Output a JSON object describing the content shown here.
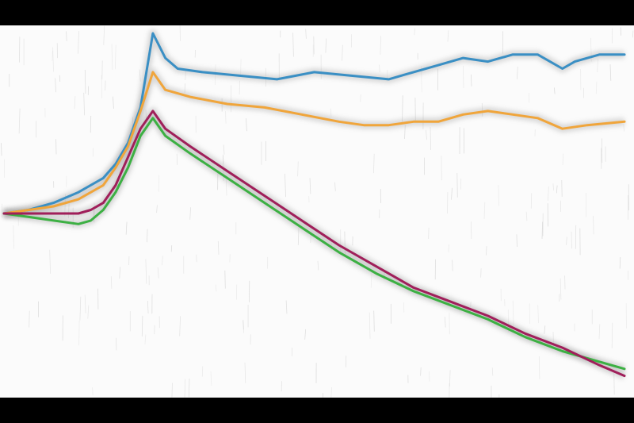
{
  "chart_data": {
    "type": "line",
    "title": "",
    "xlabel": "",
    "ylabel": "",
    "grid": false,
    "legend": "none",
    "xlim": [
      0,
      100
    ],
    "ylim": [
      0,
      100
    ],
    "series": [
      {
        "color": "#3a8fc4",
        "points": [
          [
            0,
            49
          ],
          [
            4,
            50
          ],
          [
            8,
            52
          ],
          [
            12,
            55
          ],
          [
            16,
            59
          ],
          [
            18,
            63
          ],
          [
            20,
            69
          ],
          [
            22,
            79
          ],
          [
            24,
            100
          ],
          [
            26,
            93
          ],
          [
            28,
            90
          ],
          [
            32,
            89
          ],
          [
            38,
            88
          ],
          [
            44,
            87
          ],
          [
            50,
            89
          ],
          [
            56,
            88
          ],
          [
            62,
            87
          ],
          [
            66,
            89
          ],
          [
            70,
            91
          ],
          [
            74,
            93
          ],
          [
            78,
            92
          ],
          [
            82,
            94
          ],
          [
            86,
            94
          ],
          [
            90,
            90
          ],
          [
            92,
            92
          ],
          [
            96,
            94
          ],
          [
            100,
            94
          ]
        ]
      },
      {
        "color": "#f0a53b",
        "points": [
          [
            0,
            49
          ],
          [
            4,
            50
          ],
          [
            8,
            51
          ],
          [
            12,
            53
          ],
          [
            16,
            57
          ],
          [
            18,
            62
          ],
          [
            20,
            68
          ],
          [
            22,
            78
          ],
          [
            24,
            89
          ],
          [
            26,
            84
          ],
          [
            30,
            82
          ],
          [
            36,
            80
          ],
          [
            42,
            79
          ],
          [
            48,
            77
          ],
          [
            54,
            75
          ],
          [
            58,
            74
          ],
          [
            62,
            74
          ],
          [
            66,
            75
          ],
          [
            70,
            75
          ],
          [
            74,
            77
          ],
          [
            78,
            78
          ],
          [
            82,
            77
          ],
          [
            86,
            76
          ],
          [
            90,
            73
          ],
          [
            94,
            74
          ],
          [
            100,
            75
          ]
        ]
      },
      {
        "color": "#3cb043",
        "points": [
          [
            0,
            49
          ],
          [
            4,
            48
          ],
          [
            8,
            47
          ],
          [
            12,
            46
          ],
          [
            14,
            47
          ],
          [
            16,
            50
          ],
          [
            18,
            55
          ],
          [
            20,
            62
          ],
          [
            22,
            71
          ],
          [
            24,
            76
          ],
          [
            26,
            71
          ],
          [
            30,
            66
          ],
          [
            36,
            59
          ],
          [
            42,
            52
          ],
          [
            48,
            45
          ],
          [
            54,
            38
          ],
          [
            60,
            32
          ],
          [
            66,
            27
          ],
          [
            72,
            23
          ],
          [
            78,
            19
          ],
          [
            84,
            14
          ],
          [
            90,
            10
          ],
          [
            96,
            7
          ],
          [
            100,
            5
          ]
        ]
      },
      {
        "color": "#a01f5a",
        "points": [
          [
            0,
            49
          ],
          [
            4,
            49
          ],
          [
            8,
            49
          ],
          [
            12,
            49
          ],
          [
            14,
            50
          ],
          [
            16,
            52
          ],
          [
            18,
            57
          ],
          [
            20,
            65
          ],
          [
            22,
            73
          ],
          [
            24,
            78
          ],
          [
            26,
            73
          ],
          [
            30,
            68
          ],
          [
            36,
            61
          ],
          [
            42,
            54
          ],
          [
            48,
            47
          ],
          [
            54,
            40
          ],
          [
            60,
            34
          ],
          [
            66,
            28
          ],
          [
            72,
            24
          ],
          [
            78,
            20
          ],
          [
            84,
            15
          ],
          [
            90,
            11
          ],
          [
            96,
            6
          ],
          [
            100,
            3
          ]
        ]
      }
    ]
  }
}
